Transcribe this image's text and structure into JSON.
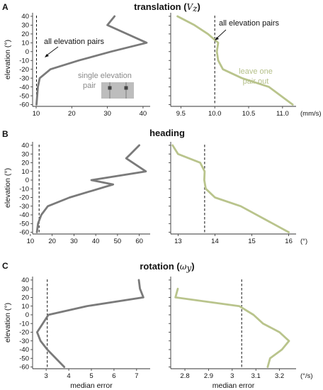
{
  "colors": {
    "grey": "#7a7a7a",
    "green": "#b9c48c"
  },
  "panels": [
    {
      "label": "A",
      "title": "translation (",
      "title_math": "V",
      "title_sub": "z",
      "title_end": ")"
    },
    {
      "label": "B",
      "title": "heading"
    },
    {
      "label": "C",
      "title": "rotation (",
      "title_math": "ω",
      "title_sub": "y",
      "title_end": ")"
    }
  ],
  "annotations": {
    "all_pairs_left": "all elevation pairs",
    "all_pairs_right": "all elevation pairs",
    "single_pair_1": "single elevation",
    "single_pair_2": "pair",
    "leave_one_1": "leave one",
    "leave_one_2": "pair out"
  },
  "chart_data": [
    {
      "type": "line",
      "id": "A-single",
      "ylabel": "elevation (°)",
      "xlabel": "",
      "xlim": [
        9,
        42
      ],
      "ylim": [
        -62,
        44
      ],
      "xticks": [
        10,
        20,
        30,
        40
      ],
      "yticks": [
        40,
        30,
        20,
        10,
        0,
        -10,
        -20,
        -30,
        -40,
        -50,
        -60
      ],
      "x": [
        32,
        30,
        41,
        31,
        22,
        14,
        11,
        10.5,
        10.3,
        10.1
      ],
      "y": [
        40,
        30,
        10,
        0,
        -10,
        -20,
        -30,
        -40,
        -50,
        -60
      ],
      "ref_x": 10.1,
      "color": "#7a7a7a"
    },
    {
      "type": "line",
      "id": "A-loo",
      "xlabel": "",
      "unit": "(mm/s)",
      "xlim": [
        9.35,
        11.2
      ],
      "ylim": [
        -62,
        44
      ],
      "xticks": [
        9.5,
        10.0,
        10.5,
        11.0
      ],
      "xtick_labels": [
        "9.5",
        "10.0",
        "10.5",
        "11.0"
      ],
      "yticks": [
        40,
        30,
        20,
        10,
        0,
        -10,
        -20,
        -30,
        -40,
        -50,
        -60
      ],
      "x": [
        9.45,
        9.7,
        9.9,
        10.05,
        10.03,
        10.05,
        10.12,
        10.4,
        10.8,
        11.15
      ],
      "y": [
        40,
        30,
        20,
        10,
        0,
        -10,
        -20,
        -30,
        -40,
        -60
      ],
      "ref_x": 10.0,
      "color": "#b9c48c"
    },
    {
      "type": "line",
      "id": "B-single",
      "ylabel": "elevation (°)",
      "xlabel": "",
      "xlim": [
        11,
        65
      ],
      "ylim": [
        -62,
        44
      ],
      "xticks": [
        10,
        20,
        30,
        40,
        50,
        60
      ],
      "yticks": [
        40,
        30,
        20,
        10,
        0,
        -10,
        -20,
        -30,
        -40,
        -50,
        -60
      ],
      "x": [
        60,
        56,
        54,
        63,
        38,
        48,
        28,
        18,
        15,
        13.5,
        13
      ],
      "y": [
        40,
        30,
        25,
        10,
        0,
        -5,
        -20,
        -30,
        -40,
        -50,
        -60
      ],
      "ref_x": 14,
      "color": "#7a7a7a"
    },
    {
      "type": "line",
      "id": "B-loo",
      "xlabel": "",
      "unit": "(°)",
      "xlim": [
        12.8,
        16.2
      ],
      "ylim": [
        -62,
        44
      ],
      "xticks": [
        13,
        14,
        15,
        16
      ],
      "yticks": [
        40,
        30,
        20,
        10,
        0,
        -10,
        -20,
        -30,
        -40,
        -50,
        -60
      ],
      "x": [
        12.85,
        13.0,
        13.6,
        13.72,
        13.71,
        13.75,
        14.0,
        14.7,
        16.0
      ],
      "y": [
        40,
        30,
        20,
        10,
        0,
        -10,
        -20,
        -30,
        -60
      ],
      "ref_x": 13.72,
      "color": "#b9c48c"
    },
    {
      "type": "line",
      "id": "C-single",
      "ylabel": "elevation (°)",
      "xlabel": "median error",
      "xlim": [
        2.4,
        7.6
      ],
      "ylim": [
        -62,
        44
      ],
      "xticks": [
        3,
        4,
        5,
        6,
        7
      ],
      "yticks": [
        40,
        30,
        20,
        10,
        0,
        -10,
        -20,
        -30,
        -40,
        -50,
        -60
      ],
      "x": [
        7.1,
        7.15,
        7.3,
        4.8,
        3.1,
        2.85,
        2.6,
        2.75,
        3.05,
        3.8
      ],
      "y": [
        40,
        30,
        20,
        10,
        0,
        -10,
        -20,
        -30,
        -40,
        -60
      ],
      "ref_x": 3.05,
      "color": "#7a7a7a"
    },
    {
      "type": "line",
      "id": "C-loo",
      "xlabel": "median error",
      "unit": "(°/s)",
      "xlim": [
        2.74,
        3.27
      ],
      "ylim": [
        -62,
        44
      ],
      "xticks": [
        2.8,
        2.9,
        3.0,
        3.1,
        3.2
      ],
      "yticks": [
        40,
        30,
        20,
        10,
        0,
        -10,
        -20,
        -30,
        -40,
        -50,
        -60
      ],
      "x": [
        2.77,
        2.76,
        3.03,
        3.09,
        3.13,
        3.2,
        3.24,
        3.21,
        3.16,
        3.15
      ],
      "y": [
        30,
        20,
        10,
        0,
        -10,
        -20,
        -30,
        -40,
        -50,
        -60
      ],
      "ref_x": 3.04,
      "color": "#b9c48c"
    }
  ]
}
